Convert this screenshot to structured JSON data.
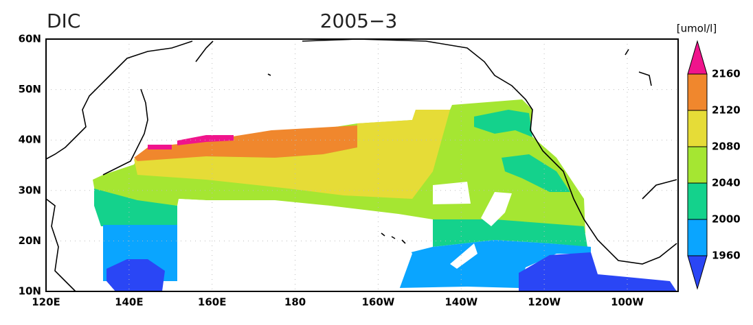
{
  "title": "DIC",
  "subtitle": "2005−3",
  "unit": "[umol/l]",
  "lat_ticks": [
    {
      "value": 60,
      "label": "60N"
    },
    {
      "value": 50,
      "label": "50N"
    },
    {
      "value": 40,
      "label": "40N"
    },
    {
      "value": 30,
      "label": "30N"
    },
    {
      "value": 20,
      "label": "20N"
    },
    {
      "value": 10,
      "label": "10N"
    }
  ],
  "lon_ticks": [
    {
      "value": 120,
      "label": "120E"
    },
    {
      "value": 140,
      "label": "140E"
    },
    {
      "value": 160,
      "label": "160E"
    },
    180,
    {
      "value": 200,
      "label": "160W"
    },
    {
      "value": 220,
      "label": "140W"
    },
    {
      "value": 240,
      "label": "120W"
    },
    {
      "value": 260,
      "label": "100W"
    }
  ],
  "colorbar": {
    "levels": [
      1960,
      2000,
      2040,
      2080,
      2120,
      2160
    ],
    "colors": [
      "#2a46f5",
      "#0aa5ff",
      "#14d28c",
      "#a5e632",
      "#e6dc37",
      "#f0872d",
      "#f0148c"
    ]
  }
}
